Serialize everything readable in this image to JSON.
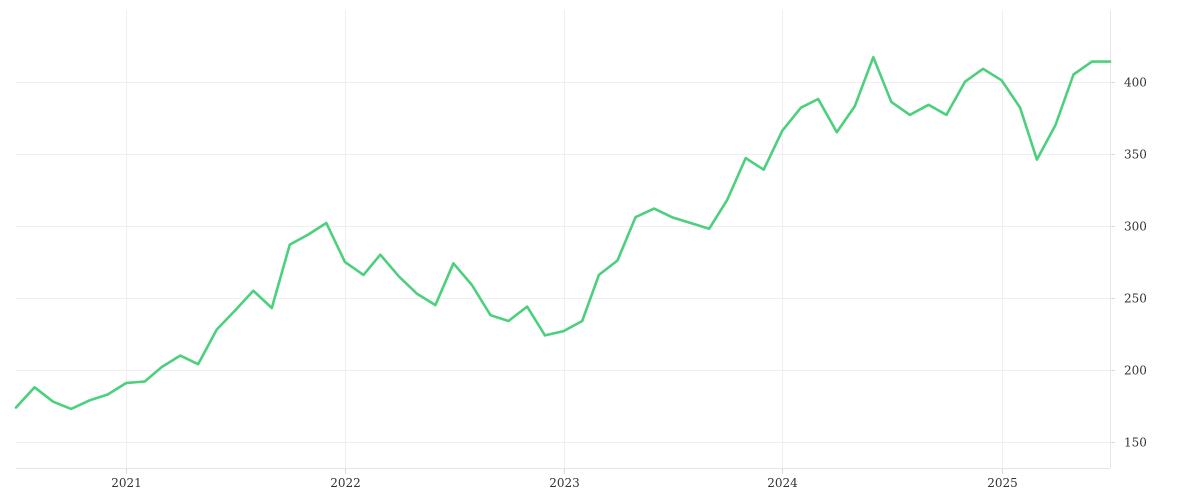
{
  "chart_data": {
    "type": "line",
    "title": "",
    "xlabel": "",
    "ylabel": "",
    "y_axis_position": "right",
    "grid": true,
    "legend": "none",
    "x_ticks": [
      "2021",
      "2022",
      "2023",
      "2024",
      "2025"
    ],
    "y_ticks": [
      150,
      200,
      250,
      300,
      350,
      400
    ],
    "xlim": [
      "2020-07-01",
      "2025-07-01"
    ],
    "ylim": [
      132,
      447
    ],
    "series": [
      {
        "color": "#4cd07d",
        "x": [
          "2020-07-01",
          "2020-08-01",
          "2020-09-01",
          "2020-10-01",
          "2020-11-01",
          "2020-12-01",
          "2021-01-01",
          "2021-02-01",
          "2021-03-01",
          "2021-04-01",
          "2021-05-01",
          "2021-06-01",
          "2021-07-01",
          "2021-08-01",
          "2021-09-01",
          "2021-10-01",
          "2021-11-01",
          "2021-12-01",
          "2022-01-01",
          "2022-02-01",
          "2022-03-01",
          "2022-04-01",
          "2022-05-01",
          "2022-06-01",
          "2022-07-01",
          "2022-08-01",
          "2022-09-01",
          "2022-10-01",
          "2022-11-01",
          "2022-12-01",
          "2023-01-01",
          "2023-02-01",
          "2023-03-01",
          "2023-04-01",
          "2023-05-01",
          "2023-06-01",
          "2023-07-01",
          "2023-08-01",
          "2023-09-01",
          "2023-10-01",
          "2023-11-01",
          "2023-12-01",
          "2024-01-01",
          "2024-02-01",
          "2024-03-01",
          "2024-04-01",
          "2024-05-01",
          "2024-06-01",
          "2024-07-01",
          "2024-08-01",
          "2024-09-01",
          "2024-10-01",
          "2024-11-01",
          "2024-12-01",
          "2025-01-01",
          "2025-02-01",
          "2025-03-01",
          "2025-04-01",
          "2025-05-01",
          "2025-06-01",
          "2025-07-01"
        ],
        "values": [
          174,
          188,
          178,
          173,
          179,
          183,
          191,
          192,
          202,
          210,
          204,
          228,
          241,
          255,
          243,
          287,
          294,
          302,
          275,
          266,
          280,
          265,
          253,
          245,
          274,
          259,
          238,
          234,
          244,
          224,
          227,
          234,
          266,
          276,
          306,
          312,
          306,
          302,
          298,
          318,
          347,
          339,
          366,
          382,
          388,
          365,
          383,
          417,
          386,
          377,
          384,
          377,
          400,
          409,
          401,
          382,
          346,
          370,
          405,
          414,
          414
        ]
      }
    ]
  }
}
